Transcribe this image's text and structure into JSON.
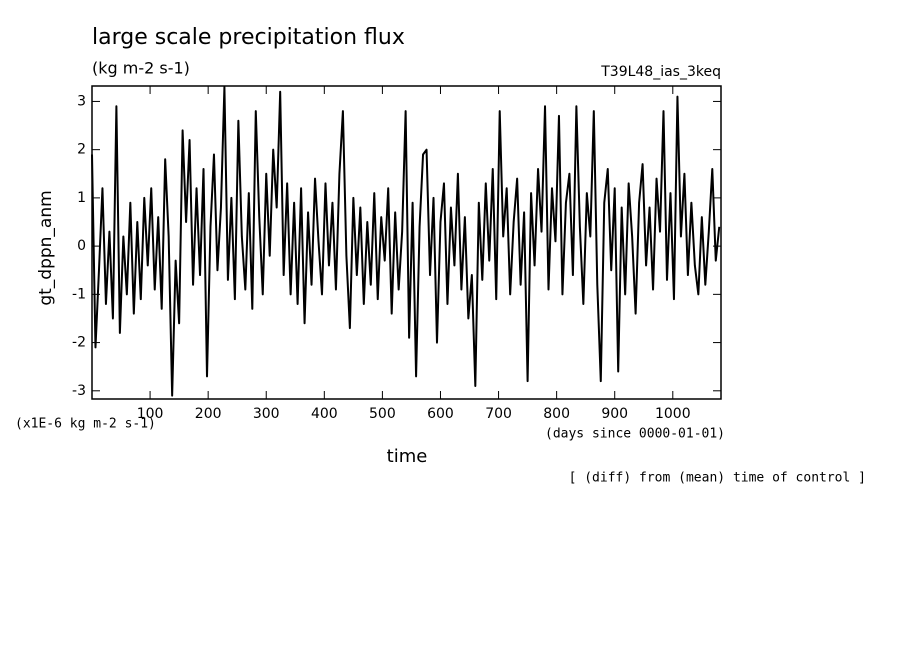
{
  "chart_data": {
    "type": "line",
    "title": "large scale precipitation flux",
    "subtitle": "(kg m-2 s-1)",
    "run_label": "T39L48_ias_3keq",
    "ylabel": "gt_dppn_anm",
    "yunit_label": "(x1E-6 kg m-2 s-1)",
    "xlabel": "time",
    "xunit_label": "(days since 0000-01-01)",
    "note": "[ (diff) from (mean) time of control ]",
    "color": "#000000",
    "xlim": [
      0,
      1083
    ],
    "ylim": [
      -3.17,
      3.32
    ],
    "xticks": [
      100,
      200,
      300,
      400,
      500,
      600,
      700,
      800,
      900,
      1000
    ],
    "yticks": [
      -3,
      -2,
      -1,
      0,
      1,
      2,
      3
    ],
    "x": [
      0,
      6,
      12,
      18,
      24,
      30,
      36,
      42,
      48,
      54,
      60,
      66,
      72,
      78,
      84,
      90,
      96,
      102,
      108,
      114,
      120,
      126,
      132,
      138,
      144,
      150,
      156,
      162,
      168,
      174,
      180,
      186,
      192,
      198,
      204,
      210,
      216,
      222,
      228,
      234,
      240,
      246,
      252,
      258,
      264,
      270,
      276,
      282,
      288,
      294,
      300,
      306,
      312,
      318,
      324,
      330,
      336,
      342,
      348,
      354,
      360,
      366,
      372,
      378,
      384,
      390,
      396,
      402,
      408,
      414,
      420,
      426,
      432,
      438,
      444,
      450,
      456,
      462,
      468,
      474,
      480,
      486,
      492,
      498,
      504,
      510,
      516,
      522,
      528,
      534,
      540,
      546,
      552,
      558,
      564,
      570,
      576,
      582,
      588,
      594,
      600,
      606,
      612,
      618,
      624,
      630,
      636,
      642,
      648,
      654,
      660,
      666,
      672,
      678,
      684,
      690,
      696,
      702,
      708,
      714,
      720,
      726,
      732,
      738,
      744,
      750,
      756,
      762,
      768,
      774,
      780,
      786,
      792,
      798,
      804,
      810,
      816,
      822,
      828,
      834,
      840,
      846,
      852,
      858,
      864,
      870,
      876,
      882,
      888,
      894,
      900,
      906,
      912,
      918,
      924,
      930,
      936,
      942,
      948,
      954,
      960,
      966,
      972,
      978,
      984,
      990,
      996,
      1002,
      1008,
      1014,
      1020,
      1026,
      1032,
      1038,
      1044,
      1050,
      1056,
      1062,
      1068,
      1074,
      1080
    ],
    "values": [
      1.9,
      -2.1,
      -0.5,
      1.2,
      -1.2,
      0.3,
      -1.5,
      2.9,
      -1.8,
      0.2,
      -1.0,
      0.9,
      -1.4,
      0.5,
      -1.1,
      1.0,
      -0.4,
      1.2,
      -0.9,
      0.6,
      -1.3,
      1.8,
      0.2,
      -3.1,
      -0.3,
      -1.6,
      2.4,
      0.5,
      2.2,
      -0.8,
      1.2,
      -0.6,
      1.6,
      -2.7,
      0.4,
      1.9,
      -0.5,
      0.8,
      3.3,
      -0.7,
      1.0,
      -1.1,
      2.6,
      0.2,
      -0.9,
      1.1,
      -1.3,
      2.8,
      0.6,
      -1.0,
      1.5,
      -0.2,
      2.0,
      0.8,
      3.2,
      -0.6,
      1.3,
      -1.0,
      0.9,
      -1.2,
      1.2,
      -1.6,
      0.7,
      -0.8,
      1.4,
      0.1,
      -1.0,
      1.3,
      -0.4,
      0.9,
      -0.9,
      1.5,
      2.8,
      -0.2,
      -1.7,
      1.0,
      -0.6,
      0.8,
      -1.2,
      0.5,
      -0.8,
      1.1,
      -1.1,
      0.6,
      -0.3,
      1.2,
      -1.4,
      0.7,
      -0.9,
      0.3,
      2.8,
      -1.9,
      0.9,
      -2.7,
      0.4,
      1.9,
      2.0,
      -0.6,
      1.0,
      -2.0,
      0.5,
      1.3,
      -1.2,
      0.8,
      -0.4,
      1.5,
      -0.9,
      0.6,
      -1.5,
      -0.6,
      -2.9,
      0.9,
      -0.7,
      1.3,
      -0.3,
      1.6,
      -1.1,
      2.8,
      0.2,
      1.2,
      -1.0,
      0.5,
      1.4,
      -0.8,
      0.7,
      -2.8,
      1.1,
      -0.4,
      1.6,
      0.3,
      2.9,
      -0.9,
      1.2,
      0.1,
      2.7,
      -1.0,
      0.9,
      1.5,
      -0.6,
      2.9,
      0.4,
      -1.2,
      1.1,
      0.2,
      2.8,
      -0.8,
      -2.8,
      0.9,
      1.6,
      -0.5,
      1.2,
      -2.6,
      0.8,
      -1.0,
      1.3,
      0.2,
      -1.4,
      0.9,
      1.7,
      -0.4,
      0.8,
      -0.9,
      1.4,
      0.3,
      2.8,
      -0.7,
      1.1,
      -1.1,
      3.1,
      0.2,
      1.5,
      -0.6,
      0.9,
      -0.4,
      -1.0,
      0.6,
      -0.8,
      0.3,
      1.6,
      -0.3,
      0.4
    ]
  }
}
